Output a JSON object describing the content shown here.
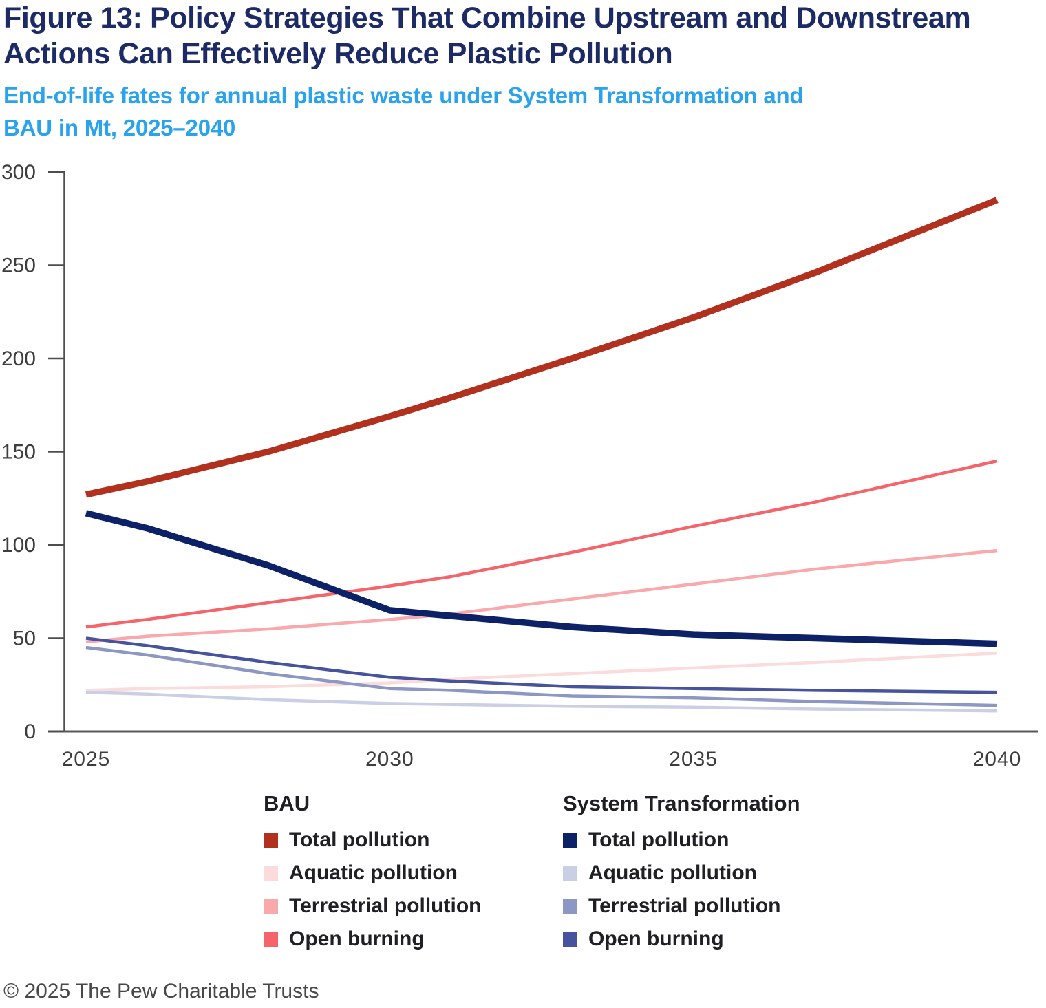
{
  "header": {
    "title_lines": [
      "Figure 13: Policy Strategies That Combine Upstream and Downstream",
      "Actions Can Effectively Reduce Plastic Pollution"
    ],
    "subtitle_lines": [
      "End-of-life fates for annual plastic waste under System Transformation and",
      "BAU in Mt, 2025–2040"
    ],
    "title_color": "#1C2B66",
    "subtitle_color": "#29A3EC"
  },
  "chart_data": {
    "type": "line",
    "title": "Figure 13: Policy Strategies That Combine Upstream and Downstream Actions Can Effectively Reduce Plastic Pollution",
    "subtitle": "End-of-life fates for annual plastic waste under System Transformation and BAU in Mt, 2025–2040",
    "unit": "Mt",
    "xlabel": "",
    "ylabel": "",
    "ylim": [
      0,
      300
    ],
    "xlim": [
      2025,
      2040
    ],
    "yticks": [
      0,
      50,
      100,
      150,
      200,
      250,
      300
    ],
    "xticks": [
      2025,
      2030,
      2035,
      2040
    ],
    "grid": false,
    "legend_position": "bottom",
    "x": [
      2025,
      2026,
      2028,
      2030,
      2031,
      2033,
      2035,
      2037,
      2040
    ],
    "series": [
      {
        "group": "BAU",
        "name": "Total pollution",
        "color": "#B2301E",
        "line_width": 9.5,
        "values": [
          127,
          134,
          150,
          169,
          179,
          200,
          222,
          246,
          285
        ]
      },
      {
        "group": "BAU",
        "name": "Aquatic pollution",
        "color": "#FBDBDB",
        "line_width": 4.5,
        "values": [
          22,
          23,
          24,
          26,
          28,
          31,
          34,
          37,
          42
        ]
      },
      {
        "group": "BAU",
        "name": "Terrestrial pollution",
        "color": "#F9A8AC",
        "line_width": 4.5,
        "values": [
          48,
          51,
          55,
          60,
          63,
          71,
          79,
          87,
          97
        ]
      },
      {
        "group": "BAU",
        "name": "Open burning",
        "color": "#F5646B",
        "line_width": 4.5,
        "values": [
          56,
          60,
          69,
          78,
          83,
          96,
          110,
          123,
          145
        ]
      },
      {
        "group": "System Transformation",
        "name": "Total pollution",
        "color": "#0D2166",
        "line_width": 9.5,
        "values": [
          117,
          109,
          89,
          65,
          62,
          56,
          52,
          50,
          47
        ]
      },
      {
        "group": "System Transformation",
        "name": "Aquatic pollution",
        "color": "#C9CFE5",
        "line_width": 4.5,
        "values": [
          21,
          20,
          17,
          15,
          14.5,
          13.5,
          13,
          12,
          11
        ]
      },
      {
        "group": "System Transformation",
        "name": "Terrestrial pollution",
        "color": "#8D97C4",
        "line_width": 4.5,
        "values": [
          45,
          41,
          31,
          23,
          22,
          19,
          18,
          16,
          14
        ]
      },
      {
        "group": "System Transformation",
        "name": "Open burning",
        "color": "#47549D",
        "line_width": 4.5,
        "values": [
          50,
          46,
          37,
          29,
          27,
          24,
          23,
          22,
          21
        ]
      }
    ],
    "draw_order": [
      1,
      2,
      3,
      5,
      6,
      7,
      0,
      4
    ],
    "axis_color": "#4D4D4D",
    "tick_label_color": "#3D3D3D"
  },
  "legend": {
    "columns": [
      {
        "header": "BAU"
      },
      {
        "header": "System Transformation"
      }
    ]
  },
  "footer": {
    "copyright": "© 2025 The Pew Charitable Trusts"
  }
}
